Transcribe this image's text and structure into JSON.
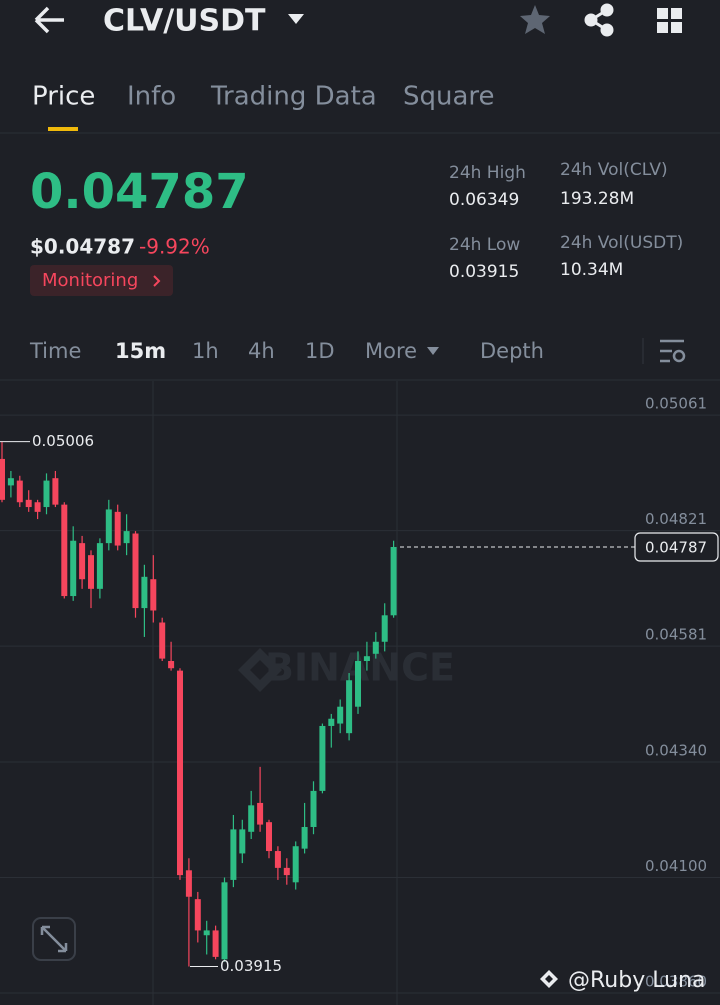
{
  "header": {
    "title": "CLV/USDT"
  },
  "tabs": [
    "Price",
    "Info",
    "Trading Data",
    "Square"
  ],
  "ticker": {
    "last_price": "0.04787",
    "price_usd": "$0.04787",
    "change": "-9.92%",
    "monitoring": "Monitoring",
    "stats": [
      {
        "label": "24h High",
        "value": "0.06349"
      },
      {
        "label": "24h Low",
        "value": "0.03915"
      },
      {
        "label": "24h Vol(CLV)",
        "value": "193.28M"
      },
      {
        "label": "24h Vol(USDT)",
        "value": "10.34M"
      }
    ]
  },
  "intervals": [
    "Time",
    "15m",
    "1h",
    "4h",
    "1D",
    "More",
    "Depth"
  ],
  "chart_data": {
    "type": "candlestick",
    "watermark": "BINANCE",
    "up_color": "#2ebd85",
    "down_color": "#f6465d",
    "open": [
      0.0497,
      0.04915,
      0.04925,
      0.04885,
      0.0488,
      0.0487,
      0.0493,
      0.04875,
      0.04685,
      0.04795,
      0.0477,
      0.047,
      0.04795,
      0.0486,
      0.04795,
      0.04815,
      0.0466,
      0.0472,
      0.0463,
      0.0455,
      0.0453,
      0.04115,
      0.04055,
      0.0398,
      0.0399,
      0.0393,
      0.04095,
      0.0415,
      0.04195,
      0.04255,
      0.04215,
      0.04155,
      0.0412,
      0.0409,
      0.0416,
      0.04205,
      0.0428,
      0.04415,
      0.0442,
      0.044,
      0.04455,
      0.0455,
      0.04565,
      0.0459,
      0.04645
    ],
    "high": [
      0.05006,
      0.04945,
      0.04935,
      0.04905,
      0.04885,
      0.0494,
      0.04945,
      0.0488,
      0.0483,
      0.0481,
      0.0478,
      0.04805,
      0.04885,
      0.04875,
      0.04855,
      0.0482,
      0.0475,
      0.0477,
      0.0464,
      0.0459,
      0.04535,
      0.0414,
      0.0407,
      0.0401,
      0.04,
      0.041,
      0.0423,
      0.0422,
      0.0428,
      0.0433,
      0.0422,
      0.04165,
      0.0414,
      0.04175,
      0.04255,
      0.043,
      0.0442,
      0.0444,
      0.0447,
      0.04525,
      0.0457,
      0.0459,
      0.0461,
      0.0467,
      0.048
    ],
    "low": [
      0.0488,
      0.0489,
      0.0487,
      0.0486,
      0.04845,
      0.04855,
      0.0487,
      0.0468,
      0.04675,
      0.047,
      0.0466,
      0.0468,
      0.0478,
      0.0478,
      0.0477,
      0.0464,
      0.046,
      0.0463,
      0.0455,
      0.0453,
      0.04095,
      0.03915,
      0.03965,
      0.0394,
      0.0393,
      0.03925,
      0.0408,
      0.0413,
      0.0418,
      0.04195,
      0.0414,
      0.04095,
      0.04085,
      0.04075,
      0.0415,
      0.0419,
      0.04275,
      0.0437,
      0.044,
      0.04385,
      0.0444,
      0.0453,
      0.04555,
      0.0457,
      0.0464
    ],
    "close": [
      0.04885,
      0.0493,
      0.0488,
      0.0487,
      0.0486,
      0.04925,
      0.04875,
      0.04685,
      0.048,
      0.0472,
      0.047,
      0.04795,
      0.04865,
      0.0479,
      0.0482,
      0.0466,
      0.04725,
      0.04655,
      0.04555,
      0.04535,
      0.04105,
      0.0406,
      0.0399,
      0.0399,
      0.03935,
      0.0409,
      0.042,
      0.042,
      0.0425,
      0.0421,
      0.04155,
      0.0412,
      0.04105,
      0.04165,
      0.04205,
      0.0428,
      0.04415,
      0.0443,
      0.04455,
      0.0451,
      0.0455,
      0.0456,
      0.0459,
      0.04645,
      0.04787
    ],
    "ylim": [
      0.03835,
      0.05132
    ],
    "yticks": [
      0.05061,
      0.04821,
      0.04581,
      {
        "value": 0.0434,
        "label": "0.04340"
      },
      {
        "value": 0.041,
        "label": "0.04100"
      },
      {
        "value": 0.0386,
        "label": "0.03860"
      }
    ],
    "grid": true,
    "last_price": 0.04787,
    "high_label": 0.05006,
    "low_label": 0.03915
  },
  "credit": "@Ruby Luna"
}
